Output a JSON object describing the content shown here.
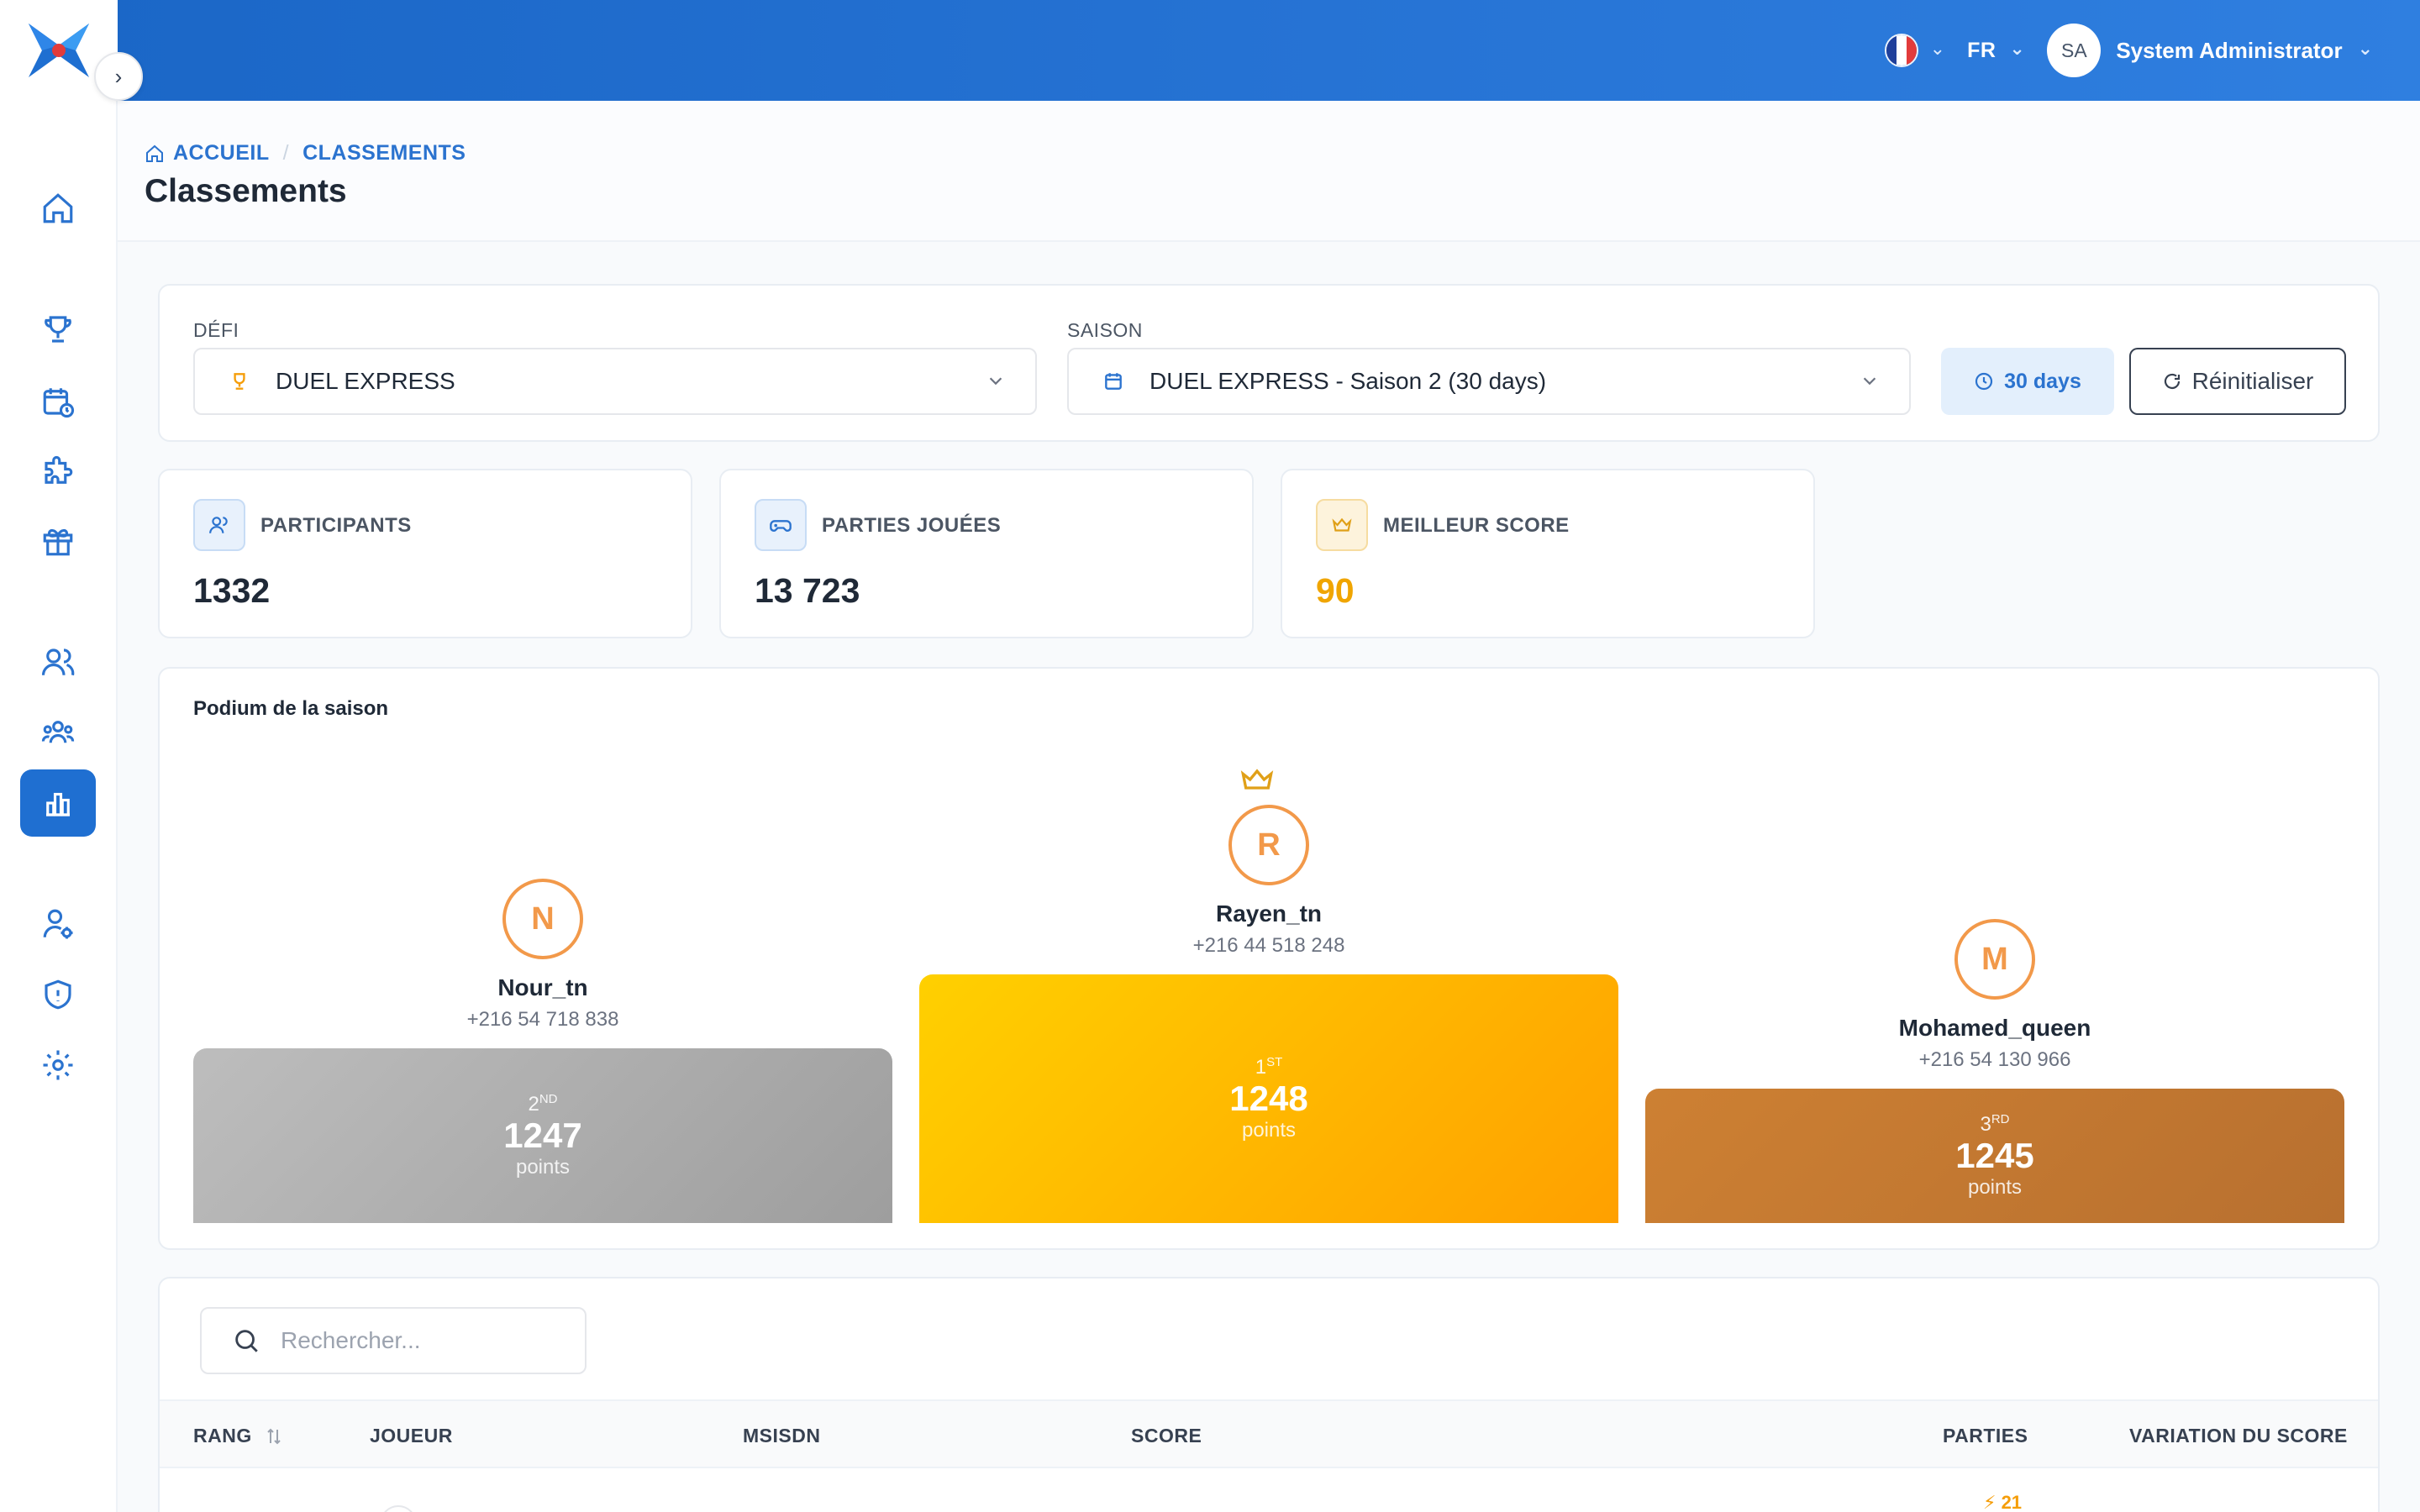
{
  "header": {
    "language": "FR",
    "user_initials": "SA",
    "user_name": "System Administrator"
  },
  "sidebar": {
    "items": [
      {
        "icon": "home-icon"
      },
      {
        "icon": "trophy-icon"
      },
      {
        "icon": "calendar-clock-icon"
      },
      {
        "icon": "puzzle-icon"
      },
      {
        "icon": "gift-icon"
      },
      {
        "icon": "users-icon"
      },
      {
        "icon": "user-group-icon"
      },
      {
        "icon": "bar-chart-icon",
        "active": true
      },
      {
        "icon": "user-settings-icon"
      },
      {
        "icon": "shield-icon"
      },
      {
        "icon": "gear-icon"
      }
    ]
  },
  "breadcrumb": {
    "home": "ACCUEIL",
    "current": "CLASSEMENTS"
  },
  "page": {
    "title": "Classements"
  },
  "filters": {
    "defi_label": "DÉFI",
    "defi_value": "DUEL EXPRESS",
    "saison_label": "SAISON",
    "saison_value": "DUEL EXPRESS - Saison 2 (30 days)",
    "duration": "30 days",
    "reset_label": "Réinitialiser"
  },
  "stats": {
    "participants_label": "PARTICIPANTS",
    "participants_value": "1332",
    "parties_label": "PARTIES JOUÉES",
    "parties_value": "13 723",
    "best_label": "MEILLEUR SCORE",
    "best_value": "90"
  },
  "podium": {
    "title": "Podium de la saison",
    "points_unit": "points",
    "first": {
      "initial": "R",
      "name": "Rayen_tn",
      "phone": "+216 44 518 248",
      "rank": "1",
      "rank_suffix": "ST",
      "points": "1248"
    },
    "second": {
      "initial": "N",
      "name": "Nour_tn",
      "phone": "+216 54 718 838",
      "rank": "2",
      "rank_suffix": "ND",
      "points": "1247"
    },
    "third": {
      "initial": "M",
      "name": "Mohamed_queen",
      "phone": "+216 54 130 966",
      "rank": "3",
      "rank_suffix": "RD",
      "points": "1245"
    }
  },
  "table": {
    "search_placeholder": "Rechercher...",
    "columns": {
      "rang": "RANG",
      "joueur": "JOUEUR",
      "msisdn": "MSISDN",
      "score": "SCORE",
      "parties": "PARTIES",
      "variation": "VARIATION DU SCORE"
    },
    "partial_row_parties": "21"
  },
  "colors": {
    "brand": "#1f6fd1",
    "gold": "#ffb300",
    "silver": "#a6a6a6",
    "bronze": "#c47a36",
    "avatar_ring": "#f2994a"
  }
}
